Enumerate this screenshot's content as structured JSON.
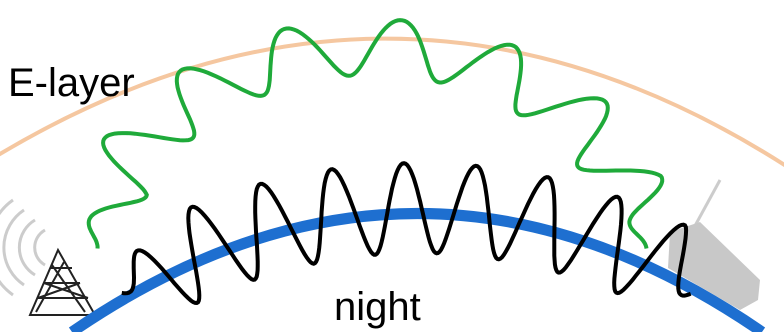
{
  "labels": {
    "layer": "E-layer",
    "ground": "night"
  }
}
